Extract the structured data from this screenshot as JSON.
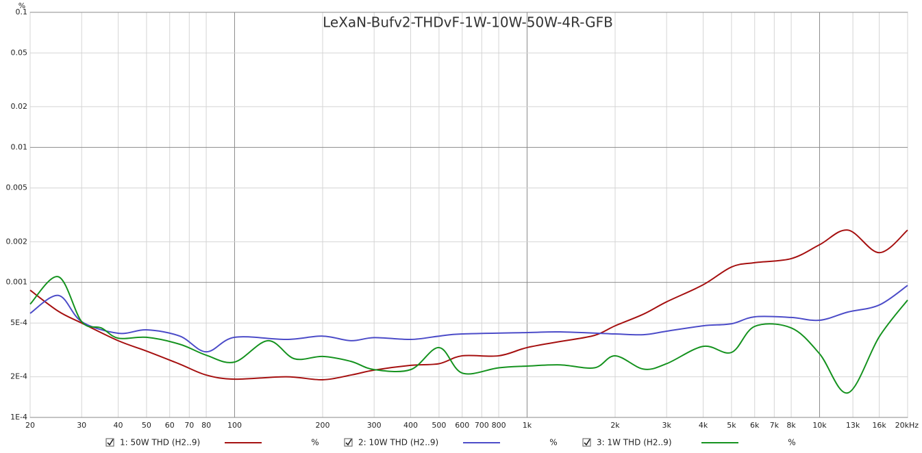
{
  "chart_data": {
    "type": "line",
    "title": "LeXaN-Bufv2-THDvF-1W-10W-50W-4R-GFB",
    "y_label": "%",
    "x_scale": "log",
    "y_scale": "log",
    "grid": true,
    "xlim": [
      20,
      20000
    ],
    "ylim": [
      0.0001,
      0.1
    ],
    "xticks": [
      20,
      30,
      40,
      50,
      60,
      70,
      80,
      100,
      200,
      300,
      400,
      500,
      600,
      700,
      800,
      {
        "value": 1000,
        "label": "1k"
      },
      {
        "value": 2000,
        "label": "2k"
      },
      {
        "value": 3000,
        "label": "3k"
      },
      {
        "value": 4000,
        "label": "4k"
      },
      {
        "value": 5000,
        "label": "5k"
      },
      {
        "value": 6000,
        "label": "6k"
      },
      {
        "value": 7000,
        "label": "7k"
      },
      {
        "value": 8000,
        "label": "8k"
      },
      {
        "value": 10000,
        "label": "10k"
      },
      {
        "value": 13000,
        "label": "13k"
      },
      {
        "value": 16000,
        "label": "16k"
      },
      {
        "value": 20000,
        "label": "20kHz"
      }
    ],
    "yticks": [
      0.1,
      0.05,
      0.02,
      0.01,
      0.005,
      0.002,
      0.001,
      {
        "value": 0.0005,
        "label": "5E-4"
      },
      {
        "value": 0.0002,
        "label": "2E-4"
      },
      {
        "value": 0.0001,
        "label": "1E-4"
      }
    ],
    "series": [
      {
        "name": "1: 50W THD (H2..9)",
        "unit": "%",
        "color": "#a50f0f",
        "x": [
          20,
          25,
          30,
          40,
          50,
          65,
          80,
          100,
          150,
          200,
          250,
          300,
          400,
          500,
          600,
          800,
          1000,
          1300,
          1700,
          2000,
          2500,
          3000,
          4000,
          5000,
          6000,
          8000,
          10000,
          12500,
          16000,
          20000
        ],
        "values": [
          0.000875,
          0.00061,
          0.0005,
          0.00037,
          0.00031,
          0.000248,
          0.000206,
          0.000192,
          0.0002,
          0.00019,
          0.000206,
          0.000224,
          0.000243,
          0.00025,
          0.000286,
          0.000286,
          0.000329,
          0.000365,
          0.000405,
          0.000477,
          0.000582,
          0.000718,
          0.00096,
          0.0013,
          0.0014,
          0.0015,
          0.0019,
          0.00244,
          0.00166,
          0.00244
        ]
      },
      {
        "name": "2: 10W THD (H2..9)",
        "unit": "%",
        "color": "#4b4bc8",
        "x": [
          20,
          25,
          30,
          40,
          50,
          65,
          80,
          100,
          150,
          200,
          250,
          300,
          400,
          500,
          600,
          1000,
          1300,
          2000,
          2500,
          3000,
          4000,
          5000,
          6000,
          8000,
          10000,
          12500,
          16000,
          20000
        ],
        "values": [
          0.00059,
          0.0008,
          0.000512,
          0.00042,
          0.000445,
          0.0004,
          0.000306,
          0.000392,
          0.000378,
          0.0004,
          0.00037,
          0.00039,
          0.000378,
          0.0004,
          0.000415,
          0.000425,
          0.00043,
          0.000415,
          0.00041,
          0.000435,
          0.000477,
          0.000494,
          0.000556,
          0.00055,
          0.000524,
          0.000603,
          0.00068,
          0.00095
        ]
      },
      {
        "name": "3: 1W THD (H2..9)",
        "unit": "%",
        "color": "#14921e",
        "x": [
          20,
          25,
          30,
          35,
          40,
          50,
          65,
          80,
          100,
          130,
          160,
          200,
          250,
          300,
          400,
          500,
          600,
          800,
          1000,
          1300,
          1700,
          2000,
          2500,
          3000,
          4000,
          5000,
          6000,
          8000,
          10000,
          12500,
          16000,
          20000
        ],
        "values": [
          0.00069,
          0.0011,
          0.000512,
          0.00046,
          0.000386,
          0.000392,
          0.000348,
          0.000289,
          0.000257,
          0.00037,
          0.000272,
          0.000283,
          0.00026,
          0.000226,
          0.000226,
          0.000329,
          0.000213,
          0.000233,
          0.00024,
          0.000245,
          0.000233,
          0.000286,
          0.000228,
          0.00025,
          0.000336,
          0.000303,
          0.000472,
          0.00046,
          0.000296,
          0.000152,
          0.000396,
          0.00074
        ]
      }
    ]
  }
}
